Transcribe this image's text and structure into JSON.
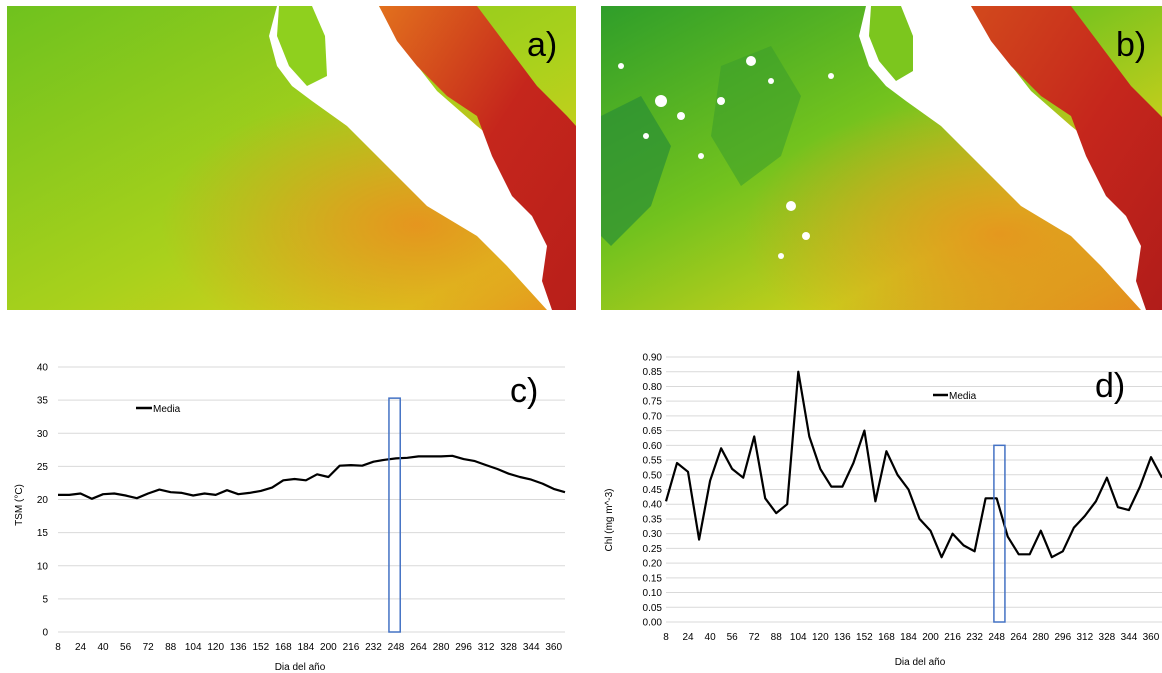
{
  "panels": {
    "a_label": "a)",
    "b_label": "b)",
    "c_label": "c)",
    "d_label": "d)"
  },
  "colors": {
    "map_green": "#6fc21e",
    "map_yellow": "#d8cf1c",
    "map_orange": "#e98f1f",
    "map_red": "#c5261c",
    "line": "#000000",
    "highlight_box": "#4472c4",
    "gridline": "#d9d9d9"
  },
  "chart_data": [
    {
      "type": "line",
      "panel": "c)",
      "xlabel": "Dia del año",
      "ylabel": "TSM (°C)",
      "ylim": [
        0,
        40
      ],
      "yticks": [
        0,
        5,
        10,
        15,
        20,
        25,
        30,
        35,
        40
      ],
      "xtick_labels": [
        "8",
        "24",
        "40",
        "56",
        "72",
        "88",
        "104",
        "120",
        "136",
        "152",
        "168",
        "184",
        "200",
        "216",
        "232",
        "248",
        "264",
        "280",
        "296",
        "312",
        "328",
        "344",
        "360"
      ],
      "grid": true,
      "legend": "top-left",
      "x": [
        8,
        16,
        24,
        32,
        40,
        48,
        56,
        64,
        72,
        80,
        88,
        96,
        104,
        112,
        120,
        128,
        136,
        144,
        152,
        160,
        168,
        176,
        184,
        192,
        200,
        208,
        216,
        224,
        232,
        240,
        248,
        256,
        264,
        272,
        280,
        288,
        296,
        304,
        312,
        320,
        328,
        336,
        344,
        352,
        360,
        368
      ],
      "series": [
        {
          "name": "Media",
          "values": [
            20.7,
            20.7,
            20.9,
            20.1,
            20.8,
            20.9,
            20.6,
            20.2,
            20.9,
            21.5,
            21.1,
            21.0,
            20.6,
            20.9,
            20.7,
            21.4,
            20.8,
            21.0,
            21.3,
            21.8,
            22.9,
            23.1,
            22.9,
            23.8,
            23.4,
            25.1,
            25.2,
            25.1,
            25.7,
            26.0,
            26.2,
            26.3,
            26.5,
            26.5,
            26.5,
            26.6,
            26.1,
            25.8,
            25.2,
            24.6,
            23.9,
            23.4,
            23.0,
            22.4,
            21.6,
            21.1
          ]
        }
      ],
      "highlight": {
        "x_start": 243,
        "x_end": 251,
        "y_top": 35.3
      }
    },
    {
      "type": "line",
      "panel": "d)",
      "xlabel": "Dia del año",
      "ylabel": "Chl (mg m^-3)",
      "ylim": [
        0,
        0.9
      ],
      "ytick_labels": [
        "0.00",
        "0.05",
        "0.10",
        "0.15",
        "0.20",
        "0.25",
        "0.30",
        "0.35",
        "0.40",
        "0.45",
        "0.50",
        "0.55",
        "0.60",
        "0.65",
        "0.70",
        "0.75",
        "0.80",
        "0.85",
        "0.90"
      ],
      "xtick_labels": [
        "8",
        "24",
        "40",
        "56",
        "72",
        "88",
        "104",
        "120",
        "136",
        "152",
        "168",
        "184",
        "200",
        "216",
        "232",
        "248",
        "264",
        "280",
        "296",
        "312",
        "328",
        "344",
        "360"
      ],
      "grid": true,
      "legend": "top-left",
      "x": [
        8,
        16,
        24,
        32,
        40,
        48,
        56,
        64,
        72,
        80,
        88,
        96,
        104,
        112,
        120,
        128,
        136,
        144,
        152,
        160,
        168,
        176,
        184,
        192,
        200,
        208,
        216,
        224,
        232,
        240,
        248,
        256,
        264,
        272,
        280,
        288,
        296,
        304,
        312,
        320,
        328,
        336,
        344,
        352,
        360,
        368
      ],
      "series": [
        {
          "name": "Media",
          "values": [
            0.41,
            0.54,
            0.51,
            0.28,
            0.48,
            0.59,
            0.52,
            0.49,
            0.63,
            0.42,
            0.37,
            0.4,
            0.85,
            0.63,
            0.52,
            0.46,
            0.46,
            0.54,
            0.65,
            0.41,
            0.58,
            0.5,
            0.45,
            0.35,
            0.31,
            0.22,
            0.3,
            0.26,
            0.24,
            0.42,
            0.42,
            0.29,
            0.23,
            0.23,
            0.31,
            0.22,
            0.24,
            0.32,
            0.36,
            0.41,
            0.49,
            0.39,
            0.38,
            0.46,
            0.56,
            0.49
          ]
        }
      ],
      "highlight": {
        "x_start": 246,
        "x_end": 254,
        "y_top": 0.6
      }
    }
  ]
}
